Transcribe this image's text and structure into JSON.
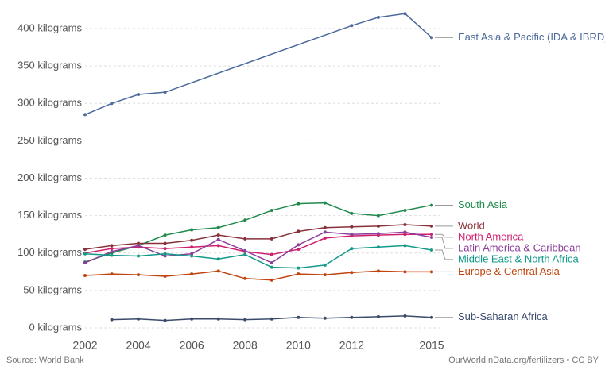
{
  "chart_data": {
    "type": "line",
    "source": "Source: World Bank",
    "credit": "OurWorldInData.org/fertilizers • CC BY",
    "x": [
      2002,
      2003,
      2004,
      2005,
      2006,
      2007,
      2008,
      2009,
      2010,
      2011,
      2012,
      2013,
      2014,
      2015
    ],
    "xlim": [
      2002,
      2015
    ],
    "xticks": [
      2002,
      2004,
      2006,
      2008,
      2010,
      2012,
      2015
    ],
    "ylim": [
      0,
      420
    ],
    "yticks": [
      {
        "value": 0,
        "label": "0 kilograms"
      },
      {
        "value": 50,
        "label": "50 kilograms"
      },
      {
        "value": 100,
        "label": "100 kilograms"
      },
      {
        "value": 150,
        "label": "150 kilograms"
      },
      {
        "value": 200,
        "label": "200 kilograms"
      },
      {
        "value": 250,
        "label": "250 kilograms"
      },
      {
        "value": 300,
        "label": "300 kilograms"
      },
      {
        "value": 350,
        "label": "350 kilograms"
      },
      {
        "value": 400,
        "label": "400 kilograms"
      }
    ],
    "grid": true,
    "series": [
      {
        "name": "East Asia & Pacific (IDA & IBRD)",
        "color": "#4c6a9c",
        "x": [
          2002,
          2003,
          2004,
          2005,
          2012,
          2013,
          2014,
          2015
        ],
        "values": [
          285,
          300,
          312,
          315,
          404,
          415,
          420,
          388
        ]
      },
      {
        "name": "South Asia",
        "color": "#1f8a4c",
        "values": [
          88,
          100,
          110,
          124,
          131,
          134,
          144,
          157,
          166,
          167,
          153,
          150,
          157,
          164
        ]
      },
      {
        "name": "World",
        "color": "#883039",
        "values": [
          105,
          110,
          113,
          113,
          117,
          124,
          119,
          119,
          129,
          134,
          135,
          136,
          138,
          136
        ]
      },
      {
        "name": "North America",
        "color": "#d01e6e",
        "values": [
          100,
          106,
          108,
          106,
          108,
          110,
          102,
          98,
          105,
          120,
          123,
          124,
          125,
          125
        ]
      },
      {
        "name": "Latin America & Caribbean",
        "color": "#8c3f9a",
        "values": [
          87,
          102,
          110,
          96,
          99,
          118,
          103,
          87,
          111,
          128,
          125,
          126,
          128,
          121
        ]
      },
      {
        "name": "Middle East & North Africa",
        "color": "#11998a",
        "values": [
          99,
          97,
          96,
          99,
          96,
          92,
          98,
          81,
          80,
          84,
          106,
          108,
          110,
          104
        ]
      },
      {
        "name": "Europe & Central Asia",
        "color": "#c1440e",
        "values": [
          70,
          72,
          71,
          69,
          72,
          76,
          66,
          64,
          72,
          71,
          74,
          76,
          75,
          75
        ]
      },
      {
        "name": "Sub-Saharan Africa",
        "color": "#3a4b6b",
        "values": [
          null,
          11,
          12,
          10,
          12,
          12,
          11,
          12,
          14,
          13,
          14,
          15,
          16,
          14
        ]
      }
    ]
  }
}
